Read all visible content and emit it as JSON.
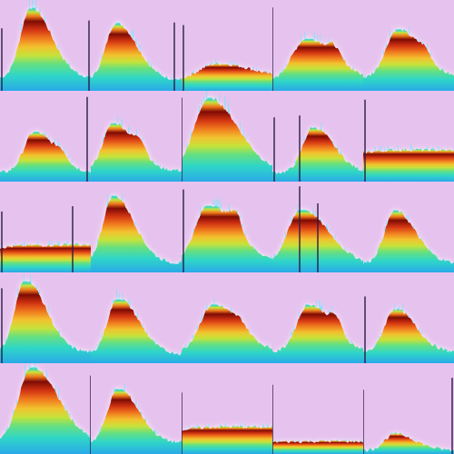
{
  "grid": {
    "rows": 5,
    "cols": 5
  },
  "colors": {
    "background": "#e6c3ee",
    "colormap": [
      "#2f6bd8",
      "#2aa9e8",
      "#2fd6c8",
      "#67e07f",
      "#c7e23a",
      "#f2c12e",
      "#f07a1e",
      "#d23412",
      "#7e0b04"
    ],
    "spike": "#2b1c44",
    "glow": "#ffffff"
  },
  "tiles": [
    {
      "base": 0.14,
      "peak": 0.92,
      "center": 0.34,
      "width": 0.14,
      "skew": 0.7,
      "hump2": 0.0,
      "spikes": [
        0.02,
        0.98
      ]
    },
    {
      "base": 0.12,
      "peak": 0.75,
      "center": 0.28,
      "width": 0.14,
      "skew": 0.6,
      "hump2": 0.0,
      "spikes": [
        0.92
      ]
    },
    {
      "base": 0.12,
      "peak": 0.3,
      "center": 0.4,
      "width": 0.25,
      "skew": 0.5,
      "hump2": 0.0,
      "spikes": [
        0.02
      ]
    },
    {
      "base": 0.1,
      "peak": 0.58,
      "center": 0.38,
      "width": 0.2,
      "skew": 0.5,
      "hump2": 0.35,
      "spikes": [
        0.0
      ]
    },
    {
      "base": 0.14,
      "peak": 0.68,
      "center": 0.38,
      "width": 0.16,
      "skew": 0.5,
      "hump2": 0.25,
      "spikes": []
    },
    {
      "base": 0.1,
      "peak": 0.55,
      "center": 0.38,
      "width": 0.14,
      "skew": 0.5,
      "hump2": 0.3,
      "spikes": [
        0.96
      ]
    },
    {
      "base": 0.12,
      "peak": 0.65,
      "center": 0.25,
      "width": 0.14,
      "skew": 0.5,
      "hump2": 0.45,
      "spikes": []
    },
    {
      "base": 0.1,
      "peak": 0.92,
      "center": 0.3,
      "width": 0.2,
      "skew": 0.5,
      "hump2": 0.0,
      "spikes": [
        0.0
      ]
    },
    {
      "base": 0.1,
      "peak": 0.6,
      "center": 0.45,
      "width": 0.14,
      "skew": 0.5,
      "hump2": 0.0,
      "spikes": [
        0.02,
        0.3
      ]
    },
    {
      "base": 0.28,
      "peak": 0.35,
      "center": 0.5,
      "width": 0.6,
      "skew": 0.5,
      "hump2": 0.0,
      "spikes": [
        0.02
      ]
    },
    {
      "base": 0.25,
      "peak": 0.3,
      "center": 0.5,
      "width": 0.55,
      "skew": 0.5,
      "hump2": 0.55,
      "spikes": [
        0.02,
        0.8
      ]
    },
    {
      "base": 0.1,
      "peak": 0.85,
      "center": 0.25,
      "width": 0.14,
      "skew": 0.5,
      "hump2": 0.0,
      "spikes": []
    },
    {
      "base": 0.12,
      "peak": 0.75,
      "center": 0.3,
      "width": 0.18,
      "skew": 0.5,
      "hump2": 0.5,
      "spikes": [
        0.02
      ]
    },
    {
      "base": 0.1,
      "peak": 0.7,
      "center": 0.32,
      "width": 0.18,
      "skew": 0.5,
      "hump2": 0.0,
      "spikes": [
        0.3,
        0.5
      ]
    },
    {
      "base": 0.1,
      "peak": 0.68,
      "center": 0.35,
      "width": 0.14,
      "skew": 0.5,
      "hump2": 0.0,
      "spikes": []
    },
    {
      "base": 0.12,
      "peak": 0.92,
      "center": 0.28,
      "width": 0.14,
      "skew": 0.5,
      "hump2": 0.0,
      "spikes": [
        0.02
      ]
    },
    {
      "base": 0.1,
      "peak": 0.72,
      "center": 0.3,
      "width": 0.14,
      "skew": 0.5,
      "hump2": 0.0,
      "spikes": []
    },
    {
      "base": 0.12,
      "peak": 0.65,
      "center": 0.35,
      "width": 0.18,
      "skew": 0.5,
      "hump2": 0.2,
      "spikes": []
    },
    {
      "base": 0.12,
      "peak": 0.65,
      "center": 0.4,
      "width": 0.16,
      "skew": 0.5,
      "hump2": 0.45,
      "spikes": []
    },
    {
      "base": 0.12,
      "peak": 0.6,
      "center": 0.35,
      "width": 0.14,
      "skew": 0.5,
      "hump2": 0.0,
      "spikes": [
        0.02
      ]
    },
    {
      "base": 0.12,
      "peak": 0.96,
      "center": 0.35,
      "width": 0.18,
      "skew": 0.5,
      "hump2": 0.0,
      "spikes": [
        1.0
      ]
    },
    {
      "base": 0.12,
      "peak": 0.72,
      "center": 0.3,
      "width": 0.14,
      "skew": 0.5,
      "hump2": 0.0,
      "spikes": []
    },
    {
      "base": 0.22,
      "peak": 0.3,
      "center": 0.5,
      "width": 0.6,
      "skew": 0.5,
      "hump2": 0.0,
      "spikes": [
        0.0
      ]
    },
    {
      "base": 0.12,
      "peak": 0.14,
      "center": 0.5,
      "width": 0.6,
      "skew": 0.5,
      "hump2": 0.0,
      "spikes": [
        0.0
      ]
    },
    {
      "base": 0.04,
      "peak": 0.22,
      "center": 0.35,
      "width": 0.14,
      "skew": 0.5,
      "hump2": 0.0,
      "spikes": [
        0.0,
        0.98
      ]
    }
  ]
}
